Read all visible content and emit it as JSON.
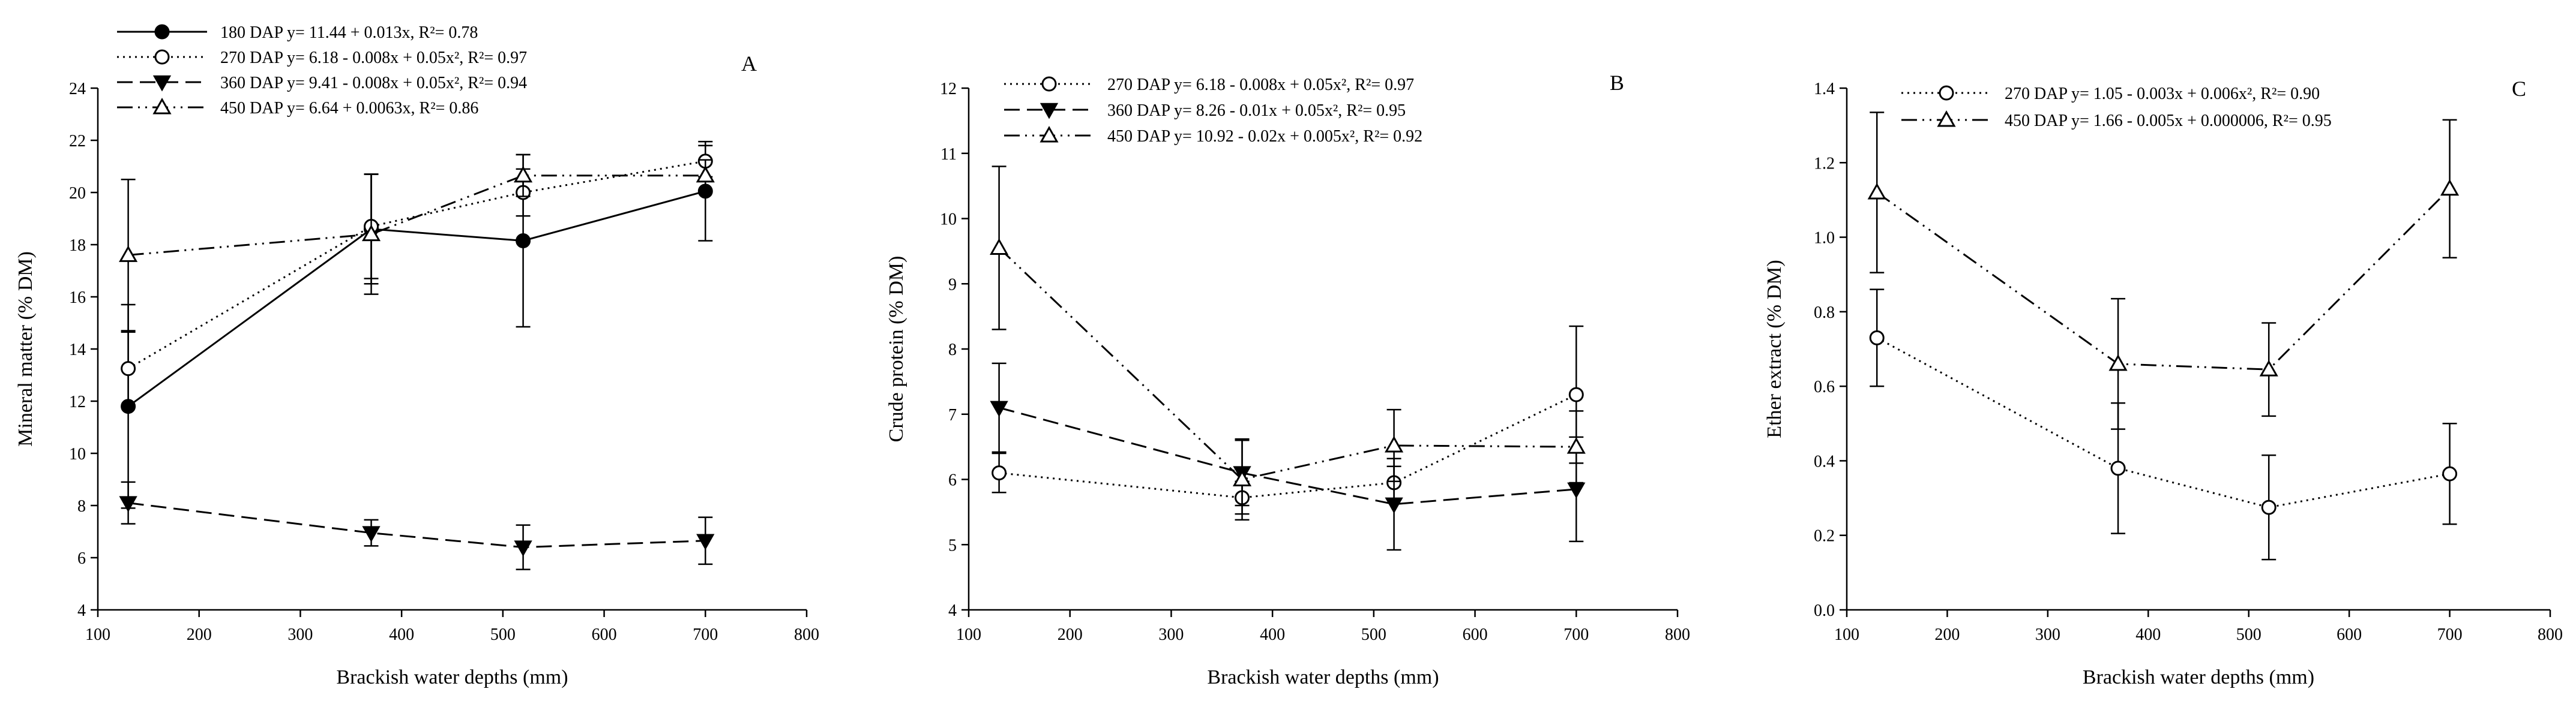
{
  "figure": {
    "xlabel": "Brackish water depths (mm)"
  },
  "chart_data": [
    {
      "type": "line",
      "letter": "A",
      "ylabel": "Mineral matter (% DM)",
      "xlabel": "Brackish water depths (mm)",
      "xlim": [
        100,
        800
      ],
      "ylim": [
        4,
        24
      ],
      "xticks": [
        100,
        200,
        300,
        400,
        500,
        600,
        700,
        800
      ],
      "yticks": [
        4,
        6,
        8,
        10,
        12,
        14,
        16,
        18,
        20,
        22,
        24
      ],
      "x": [
        130,
        370,
        520,
        700
      ],
      "series": [
        {
          "name": "180 DAP",
          "label": "180 DAP y= 11.44 + 0.013x, R²= 0.78",
          "marker": "circle-filled",
          "dash": "solid",
          "values": [
            11.8,
            18.6,
            18.15,
            20.05
          ],
          "err": [
            3.9,
            2.1,
            3.3,
            1.9
          ]
        },
        {
          "name": "270 DAP",
          "label": "270 DAP y= 6.18 - 0.008x + 0.05x², R²= 0.97",
          "marker": "circle-open",
          "dash": "dot",
          "values": [
            13.25,
            18.7,
            20.0,
            21.2
          ],
          "err": [
            1.4,
            2.0,
            0.9,
            0.6
          ]
        },
        {
          "name": "360 DAP",
          "label": "360 DAP y= 9.41 - 0.008x + 0.05x², R²= 0.94",
          "marker": "triangle-down-filled",
          "dash": "dash",
          "values": [
            8.1,
            6.95,
            6.4,
            6.65
          ],
          "err": [
            0.8,
            0.5,
            0.85,
            0.9
          ]
        },
        {
          "name": "450 DAP",
          "label": "450 DAP y= 6.64 + 0.0063x, R²= 0.86",
          "marker": "triangle-up-open",
          "dash": "dashdotdot",
          "values": [
            17.6,
            18.4,
            20.65,
            20.65
          ],
          "err": [
            2.9,
            2.3,
            0.8,
            0.6
          ]
        }
      ]
    },
    {
      "type": "line",
      "letter": "B",
      "ylabel": "Crude protein (% DM)",
      "xlabel": "Brackish water depths (mm)",
      "xlim": [
        100,
        800
      ],
      "ylim": [
        4,
        12
      ],
      "xticks": [
        100,
        200,
        300,
        400,
        500,
        600,
        700,
        800
      ],
      "yticks": [
        4,
        5,
        6,
        7,
        8,
        9,
        10,
        11,
        12
      ],
      "x": [
        130,
        370,
        520,
        700
      ],
      "series": [
        {
          "name": "270 DAP",
          "label": "270 DAP y= 6.18 - 0.008x + 0.05x², R²= 0.97",
          "marker": "circle-open",
          "dash": "dot",
          "values": [
            6.1,
            5.72,
            5.95,
            7.3
          ],
          "err": [
            0.3,
            0.25,
            0.25,
            1.05
          ]
        },
        {
          "name": "360 DAP",
          "label": "360 DAP y= 8.26 - 0.01x + 0.05x²,  R²= 0.95",
          "marker": "triangle-down-filled",
          "dash": "dash",
          "values": [
            7.1,
            6.1,
            5.62,
            5.85
          ],
          "err": [
            0.68,
            0.5,
            0.7,
            0.8
          ]
        },
        {
          "name": "450 DAP",
          "label": "450 DAP y= 10.92 - 0.02x + 0.005x², R²= 0.92",
          "marker": "triangle-up-open",
          "dash": "dashdotdot",
          "values": [
            9.55,
            6.0,
            6.52,
            6.5
          ],
          "err": [
            1.25,
            0.62,
            0.55,
            0.55
          ]
        }
      ]
    },
    {
      "type": "line",
      "letter": "C",
      "ylabel": "Ether extract (% DM)",
      "xlabel": "Brackish water depths (mm)",
      "xlim": [
        100,
        800
      ],
      "ylim": [
        0.0,
        1.4
      ],
      "xticks": [
        100,
        200,
        300,
        400,
        500,
        600,
        700,
        800
      ],
      "yticks": [
        0.0,
        0.2,
        0.4,
        0.6,
        0.8,
        1.0,
        1.2,
        1.4
      ],
      "decimals": 1,
      "x": [
        130,
        370,
        520,
        700
      ],
      "series": [
        {
          "name": "270 DAP",
          "label": "270 DAP y= 1.05 - 0.003x + 0.006x², R²= 0.90",
          "marker": "circle-open",
          "dash": "dot",
          "values": [
            0.73,
            0.38,
            0.275,
            0.365
          ],
          "err": [
            0.13,
            0.175,
            0.14,
            0.135
          ]
        },
        {
          "name": "450 DAP",
          "label": "450 DAP y= 1.66 - 0.005x + 0.000006, R²= 0.95",
          "marker": "triangle-up-open",
          "dash": "dashdotdot",
          "values": [
            1.12,
            0.66,
            0.645,
            1.13
          ],
          "err": [
            0.215,
            0.175,
            0.125,
            0.185
          ]
        }
      ]
    }
  ]
}
